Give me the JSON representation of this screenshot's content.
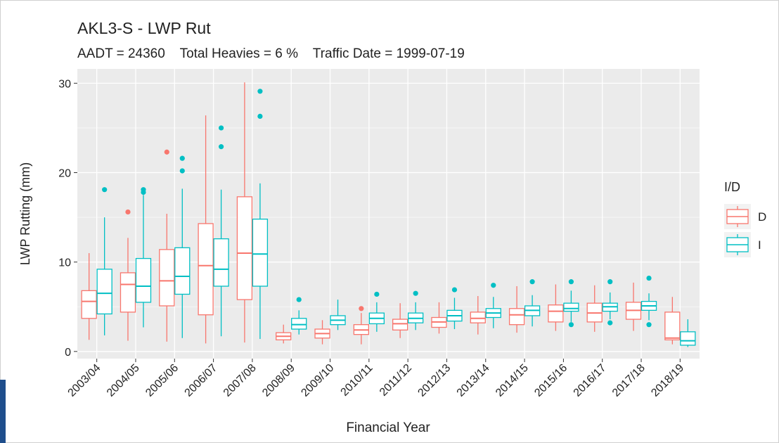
{
  "chart_data": {
    "type": "boxplot",
    "title": "AKL3-S - LWP Rut",
    "subtitle": "AADT = 24360    Total Heavies = 6 %    Traffic Date = 1999-07-19",
    "x_label": "Financial Year",
    "y_label": "LWP Rutting (mm)",
    "legend_title": "I/D",
    "legend_position": "right",
    "grid": true,
    "ylim": [
      -0.8,
      31.6
    ],
    "yticks": [
      0,
      10,
      20,
      30
    ],
    "categories": [
      "2003/04",
      "2004/05",
      "2005/06",
      "2006/07",
      "2007/08",
      "2008/09",
      "2009/10",
      "2010/11",
      "2011/12",
      "2012/13",
      "2013/14",
      "2014/15",
      "2015/16",
      "2016/17",
      "2017/18",
      "2018/19"
    ],
    "series": [
      {
        "name": "D",
        "color": "#F8766D",
        "low": [
          1.3,
          1.2,
          1.1,
          0.9,
          1.0,
          0.9,
          0.8,
          0.8,
          1.5,
          2.0,
          1.9,
          2.1,
          2.3,
          2.2,
          2.3,
          0.8
        ],
        "q1": [
          3.7,
          4.4,
          5.1,
          4.1,
          5.8,
          1.3,
          1.5,
          1.9,
          2.4,
          2.7,
          3.2,
          3.0,
          3.3,
          3.3,
          3.6,
          1.3
        ],
        "median": [
          5.6,
          7.5,
          7.9,
          9.6,
          11.0,
          1.7,
          2.0,
          2.4,
          3.1,
          3.3,
          3.7,
          4.1,
          4.5,
          4.3,
          4.6,
          1.5
        ],
        "q3": [
          6.8,
          8.8,
          11.4,
          14.3,
          17.3,
          2.1,
          2.5,
          3.0,
          3.6,
          3.8,
          4.4,
          4.8,
          5.2,
          5.4,
          5.5,
          4.4
        ],
        "high": [
          11.0,
          12.7,
          15.4,
          26.4,
          30.1,
          3.0,
          3.5,
          4.3,
          5.4,
          5.5,
          6.2,
          7.3,
          7.5,
          7.4,
          7.7,
          6.1
        ],
        "outliers": [
          [],
          [
            15.6
          ],
          [
            22.3
          ],
          [],
          [],
          [],
          [],
          [
            4.8
          ],
          [],
          [],
          [],
          [],
          [],
          [],
          [],
          []
        ]
      },
      {
        "name": "I",
        "color": "#00BFC4",
        "low": [
          1.8,
          2.7,
          1.5,
          1.7,
          1.4,
          1.9,
          2.4,
          2.2,
          2.4,
          2.5,
          2.6,
          2.8,
          3.3,
          3.6,
          3.5,
          0.5
        ],
        "q1": [
          4.2,
          5.5,
          6.4,
          7.3,
          7.3,
          2.5,
          3.0,
          3.1,
          3.2,
          3.4,
          3.8,
          4.0,
          4.5,
          4.5,
          4.6,
          0.7
        ],
        "median": [
          6.5,
          7.3,
          8.4,
          9.2,
          10.9,
          3.0,
          3.5,
          3.7,
          3.7,
          4.0,
          4.3,
          4.6,
          4.8,
          5.0,
          5.1,
          1.2
        ],
        "q3": [
          9.2,
          10.4,
          11.6,
          12.6,
          14.8,
          3.7,
          4.0,
          4.3,
          4.3,
          4.6,
          4.8,
          5.1,
          5.4,
          5.4,
          5.6,
          2.2
        ],
        "high": [
          15.0,
          17.5,
          18.2,
          18.1,
          18.8,
          4.6,
          5.8,
          5.5,
          5.5,
          6.0,
          6.1,
          6.3,
          6.8,
          6.6,
          6.5,
          3.6
        ],
        "outliers": [
          [
            18.1
          ],
          [
            17.8,
            18.1
          ],
          [
            20.2,
            21.6
          ],
          [
            22.9,
            25.0
          ],
          [
            26.3,
            29.1
          ],
          [
            5.8
          ],
          [],
          [
            6.4
          ],
          [
            6.5
          ],
          [
            6.9
          ],
          [
            7.4
          ],
          [
            7.8
          ],
          [
            3.0,
            7.8
          ],
          [
            3.2,
            7.8
          ],
          [
            3.0,
            8.2
          ],
          []
        ]
      }
    ]
  }
}
